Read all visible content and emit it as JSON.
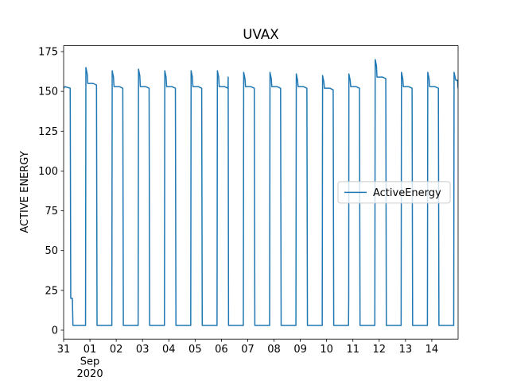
{
  "chart_data": {
    "type": "line",
    "title": "UVAX",
    "y_label": "ACTIVE ENERGY",
    "x": [
      "2020-08-31 00:00",
      "2020-08-31 01:00",
      "2020-08-31 06:00",
      "2020-08-31 06:30",
      "2020-08-31 08:00",
      "2020-08-31 08:30",
      "2020-08-31 20:00",
      "2020-08-31 20:20",
      "2020-08-31 21:30",
      "2020-08-31 22:00",
      "2020-09-01 03:00",
      "2020-09-01 06:00",
      "2020-09-01 06:30",
      "2020-09-01 20:00",
      "2020-09-01 20:20",
      "2020-09-01 21:30",
      "2020-09-01 22:00",
      "2020-09-02 03:00",
      "2020-09-02 06:00",
      "2020-09-02 06:30",
      "2020-09-02 20:00",
      "2020-09-02 20:20",
      "2020-09-02 21:30",
      "2020-09-02 22:00",
      "2020-09-03 03:00",
      "2020-09-03 06:00",
      "2020-09-03 06:30",
      "2020-09-03 20:00",
      "2020-09-03 20:20",
      "2020-09-03 21:30",
      "2020-09-03 22:00",
      "2020-09-04 03:00",
      "2020-09-04 06:00",
      "2020-09-04 06:30",
      "2020-09-04 20:00",
      "2020-09-04 20:20",
      "2020-09-04 21:30",
      "2020-09-04 22:00",
      "2020-09-05 03:00",
      "2020-09-05 06:00",
      "2020-09-05 06:30",
      "2020-09-05 20:00",
      "2020-09-05 20:20",
      "2020-09-05 21:30",
      "2020-09-05 22:00",
      "2020-09-06 03:00",
      "2020-09-06 06:00",
      "2020-09-06 06:10",
      "2020-09-06 06:30",
      "2020-09-06 20:00",
      "2020-09-06 20:20",
      "2020-09-06 21:30",
      "2020-09-06 22:00",
      "2020-09-07 03:00",
      "2020-09-07 06:00",
      "2020-09-07 06:30",
      "2020-09-07 20:00",
      "2020-09-07 20:20",
      "2020-09-07 21:30",
      "2020-09-07 22:00",
      "2020-09-08 03:00",
      "2020-09-08 06:00",
      "2020-09-08 06:30",
      "2020-09-08 20:00",
      "2020-09-08 20:20",
      "2020-09-08 21:30",
      "2020-09-08 22:00",
      "2020-09-09 03:00",
      "2020-09-09 06:00",
      "2020-09-09 06:30",
      "2020-09-09 20:00",
      "2020-09-09 20:20",
      "2020-09-09 21:30",
      "2020-09-09 22:00",
      "2020-09-10 03:00",
      "2020-09-10 06:00",
      "2020-09-10 06:30",
      "2020-09-10 20:00",
      "2020-09-10 20:10",
      "2020-09-10 20:20",
      "2020-09-10 21:30",
      "2020-09-10 22:00",
      "2020-09-11 03:00",
      "2020-09-11 06:00",
      "2020-09-11 06:30",
      "2020-09-11 20:00",
      "2020-09-11 20:20",
      "2020-09-11 21:30",
      "2020-09-11 22:00",
      "2020-09-12 03:00",
      "2020-09-12 06:00",
      "2020-09-12 06:30",
      "2020-09-12 20:00",
      "2020-09-12 20:20",
      "2020-09-12 21:30",
      "2020-09-12 22:00",
      "2020-09-13 03:00",
      "2020-09-13 06:00",
      "2020-09-13 06:30",
      "2020-09-13 20:00",
      "2020-09-13 20:20",
      "2020-09-13 21:30",
      "2020-09-13 22:00",
      "2020-09-14 03:00",
      "2020-09-14 06:00",
      "2020-09-14 06:30",
      "2020-09-14 20:00",
      "2020-09-14 20:20",
      "2020-09-14 21:30",
      "2020-09-14 22:00",
      "2020-09-14 23:30",
      "2020-09-15 00:00"
    ],
    "series": [
      {
        "name": "ActiveEnergy",
        "color": "#1f77b4",
        "values": [
          152,
          153,
          152,
          20,
          20,
          3,
          3,
          165,
          161,
          155,
          155,
          154,
          3,
          3,
          163,
          159,
          153,
          153,
          152,
          3,
          3,
          164,
          160,
          153,
          153,
          152,
          3,
          3,
          163,
          159,
          153,
          153,
          152,
          3,
          3,
          163,
          159,
          153,
          153,
          152,
          3,
          3,
          163,
          159,
          153,
          153,
          152,
          159,
          3,
          3,
          162,
          158,
          153,
          153,
          152,
          3,
          3,
          162,
          158,
          153,
          153,
          152,
          3,
          3,
          161,
          157,
          153,
          153,
          152,
          3,
          3,
          160,
          156,
          152,
          152,
          151,
          3,
          3,
          20,
          161,
          157,
          153,
          153,
          152,
          3,
          3,
          170,
          166,
          159,
          159,
          158,
          3,
          3,
          162,
          158,
          153,
          153,
          152,
          3,
          3,
          162,
          158,
          153,
          153,
          152,
          3,
          3,
          162,
          158,
          157,
          157,
          152
        ]
      }
    ],
    "xlim": [
      "2020-08-31 00:00",
      "2020-09-15 00:00"
    ],
    "xticks": [
      {
        "value": "2020-08-31",
        "label": "31"
      },
      {
        "value": "2020-09-01",
        "label": "01\nSep\n2020"
      },
      {
        "value": "2020-09-02",
        "label": "02"
      },
      {
        "value": "2020-09-03",
        "label": "03"
      },
      {
        "value": "2020-09-04",
        "label": "04"
      },
      {
        "value": "2020-09-05",
        "label": "05"
      },
      {
        "value": "2020-09-06",
        "label": "06"
      },
      {
        "value": "2020-09-07",
        "label": "07"
      },
      {
        "value": "2020-09-08",
        "label": "08"
      },
      {
        "value": "2020-09-09",
        "label": "09"
      },
      {
        "value": "2020-09-10",
        "label": "10"
      },
      {
        "value": "2020-09-11",
        "label": "11"
      },
      {
        "value": "2020-09-12",
        "label": "12"
      },
      {
        "value": "2020-09-13",
        "label": "13"
      },
      {
        "value": "2020-09-14",
        "label": "14"
      }
    ],
    "ylim": [
      -5.6,
      178.7
    ],
    "yticks": [
      0,
      25,
      50,
      75,
      100,
      125,
      150,
      175
    ],
    "grid": false,
    "legend": "center right"
  }
}
